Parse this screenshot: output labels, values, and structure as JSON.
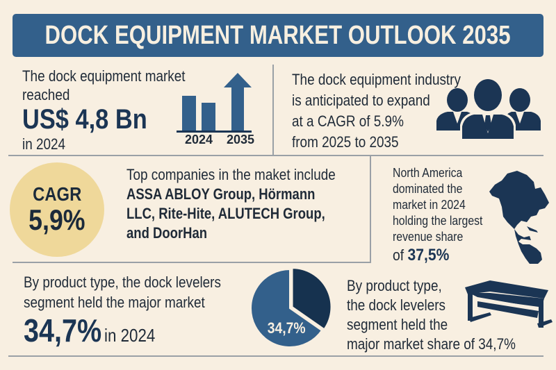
{
  "header": {
    "title": "DOCK EQUIPMENT MARKET OUTLOOK 2035"
  },
  "market_size": {
    "line1": "The dock equipment market",
    "line2": "reached",
    "value": "US$ 4,8 Bn",
    "year_text": "in 2024",
    "chart_labels": [
      "2024",
      "2035"
    ],
    "icon": "bar-chart-up-arrow-icon"
  },
  "growth": {
    "line1": "The dock equipment industry",
    "line2": "is anticipated to expand",
    "line3": "at a CAGR of 5.9%",
    "line4": "from 2025 to 2035",
    "icon": "business-people-icon"
  },
  "cagr_badge": {
    "label": "CAGR",
    "value": "5,9%"
  },
  "companies": {
    "intro": "Top companies in the maket include",
    "line2": "ASSA ABLOY Group, Hörmann",
    "line3": "LLC, Rite-Hite, ALUTECH Group,",
    "line4": "and DoorHan"
  },
  "region": {
    "line1": "North America",
    "line2": "dominated the",
    "line3": "market in 2024",
    "line4": "holding the largest",
    "line5": "revenue share",
    "prefix": "of",
    "value": "37,5%",
    "icon": "north-america-map-icon"
  },
  "product_left": {
    "line1": "By product type, the dock levelers",
    "line2": "segment held the major market",
    "value": "34,7%",
    "suffix": "in 2024"
  },
  "pie": {
    "label": "34,7%"
  },
  "product_right": {
    "line1": "By product type,",
    "line2": "the dock levelers",
    "line3": "segment held the",
    "line4": "major market share of 34,7%",
    "icon": "dock-leveler-icon"
  },
  "chart_data": [
    {
      "type": "pie",
      "title": "",
      "labels": [
        "Dock levelers",
        "Other"
      ],
      "values": [
        34.7,
        65.3
      ],
      "data_labels": [
        "34,7%"
      ]
    }
  ],
  "colors": {
    "background": "#f8efe1",
    "banner": "#33608b",
    "navy": "#1b3554",
    "accent_blue": "#33608b",
    "badge": "#efd89a"
  }
}
